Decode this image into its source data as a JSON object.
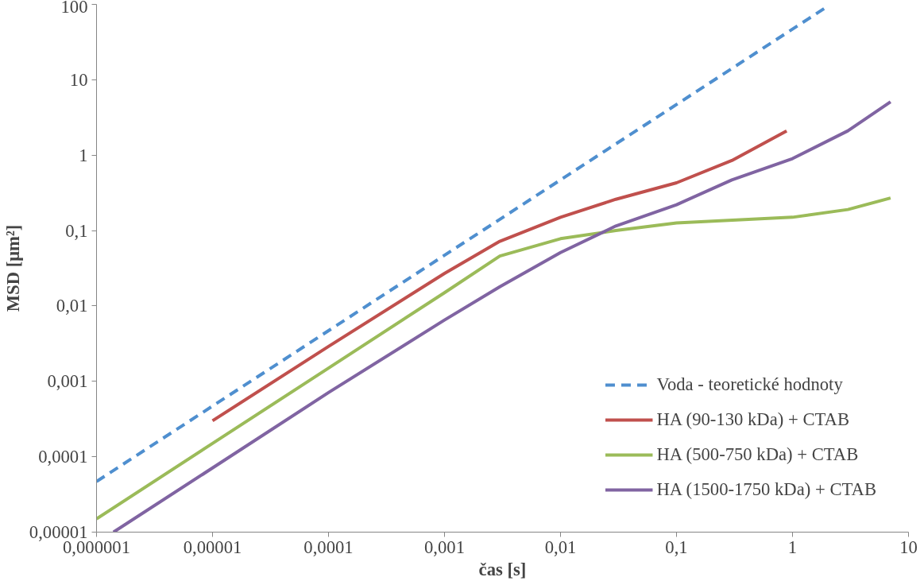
{
  "chart_data": {
    "type": "line",
    "xlabel": "čas [s]",
    "ylabel": "MSD [μm²]",
    "log": "xy",
    "grid": false,
    "legend": "bottom right",
    "xlim": [
      1e-06,
      10
    ],
    "ylim": [
      1e-05,
      100
    ],
    "xticks": [
      {
        "value": 1e-06,
        "label": "0,000001"
      },
      {
        "value": 1e-05,
        "label": "0,00001"
      },
      {
        "value": 0.0001,
        "label": "0,0001"
      },
      {
        "value": 0.001,
        "label": "0,001"
      },
      {
        "value": 0.01,
        "label": "0,01"
      },
      {
        "value": 0.1,
        "label": "0,1"
      },
      1,
      10
    ],
    "yticks": [
      {
        "value": 1e-05,
        "label": "0,00001"
      },
      {
        "value": 0.0001,
        "label": "0,0001"
      },
      {
        "value": 0.001,
        "label": "0,001"
      },
      {
        "value": 0.01,
        "label": "0,01"
      },
      {
        "value": 0.1,
        "label": "0,1"
      },
      1,
      10,
      100
    ],
    "series": [
      {
        "name": "Voda - teoretické hodnoty",
        "color": "#4f8fcf",
        "line_style": "dashed",
        "x": [
          1e-06,
          2
        ],
        "values": [
          4.7e-05,
          94
        ]
      },
      {
        "name": "HA (90-130 kDa) + CTAB",
        "color": "#c0504d",
        "line_style": "solid",
        "x": [
          1e-05,
          0.0001,
          0.001,
          0.003,
          0.01,
          0.03,
          0.1,
          0.3,
          0.89
        ],
        "values": [
          0.0003,
          0.0029,
          0.027,
          0.072,
          0.15,
          0.26,
          0.43,
          0.85,
          2.1
        ]
      },
      {
        "name": "HA (500-750 kDa) + CTAB",
        "color": "#9bbb59",
        "line_style": "solid",
        "x": [
          1e-06,
          1e-05,
          0.0001,
          0.001,
          0.003,
          0.01,
          0.03,
          0.1,
          1,
          3,
          7
        ],
        "values": [
          1.5e-05,
          0.00015,
          0.0015,
          0.015,
          0.046,
          0.078,
          0.1,
          0.126,
          0.15,
          0.19,
          0.27
        ]
      },
      {
        "name": "HA (1500-1750 kDa) + CTAB",
        "color": "#8064a2",
        "line_style": "solid",
        "x": [
          1.4e-06,
          1e-05,
          0.0001,
          0.001,
          0.003,
          0.01,
          0.03,
          0.1,
          0.3,
          1,
          3,
          7
        ],
        "values": [
          1e-05,
          7.1e-05,
          0.00071,
          0.0065,
          0.018,
          0.051,
          0.115,
          0.22,
          0.47,
          0.9,
          2.1,
          5.1
        ]
      }
    ]
  }
}
